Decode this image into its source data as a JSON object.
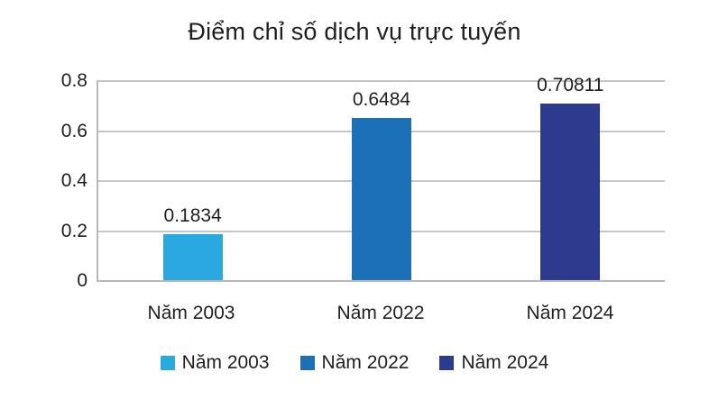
{
  "title": "Điểm chỉ số dịch vụ trực tuyến",
  "colors": {
    "bar_2003": "#2aa9e0",
    "bar_2022": "#1c70b8",
    "bar_2024": "#2c3b8d",
    "gridline": "#c6c6ca",
    "axis_border": "#b9b9bd",
    "text": "#1f1f1f"
  },
  "chart_data": {
    "type": "bar",
    "title": "Điểm chỉ số dịch vụ trực tuyến",
    "categories": [
      "Năm 2003",
      "Năm 2022",
      "Năm 2024"
    ],
    "values": [
      0.1834,
      0.6484,
      0.70811
    ],
    "data_labels": [
      "0.1834",
      "0.6484",
      "0.70811"
    ],
    "bar_colors": [
      "#2aa9e0",
      "#1c70b8",
      "#2c3b8d"
    ],
    "xlabel": "",
    "ylabel": "",
    "ylim": [
      0,
      0.8
    ],
    "y_ticks": [
      0,
      0.2,
      0.4,
      0.6,
      0.8
    ],
    "y_tick_labels": [
      "0",
      "0.2",
      "0.4",
      "0.6",
      "0.8"
    ],
    "grid": true,
    "legend": {
      "position": "bottom",
      "entries": [
        {
          "label": "Năm 2003",
          "color": "#2aa9e0"
        },
        {
          "label": "Năm 2022",
          "color": "#1c70b8"
        },
        {
          "label": "Năm 2024",
          "color": "#2c3b8d"
        }
      ]
    }
  }
}
